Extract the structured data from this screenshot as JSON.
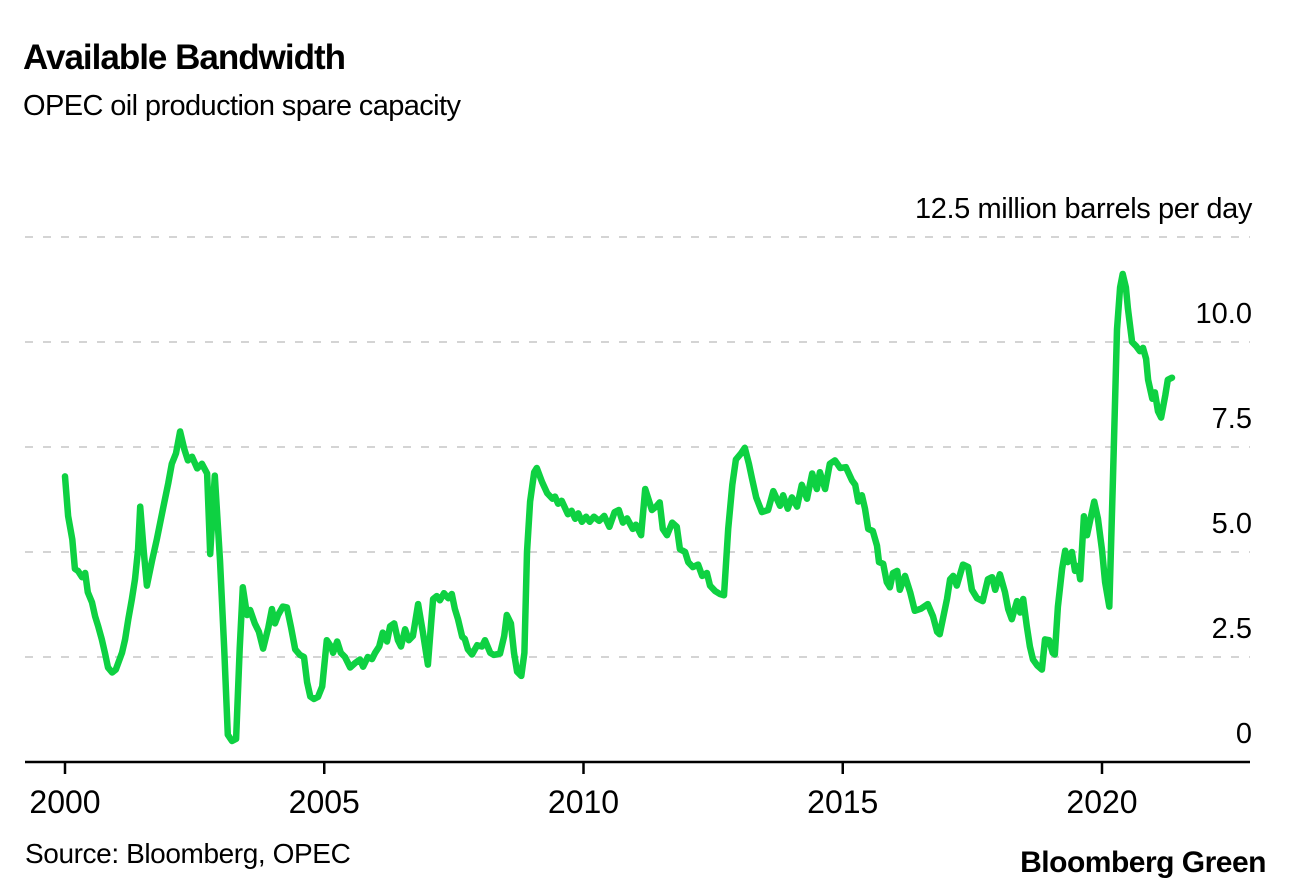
{
  "header": {
    "title": "Available Bandwidth",
    "subtitle": "OPEC oil production spare capacity"
  },
  "footer": {
    "source": "Source: Bloomberg, OPEC",
    "brand": "Bloomberg Green"
  },
  "colors": {
    "line": "#0ed142",
    "gridline": "#d4d4d4",
    "axis": "#000000",
    "background": "#ffffff",
    "text": "#000000"
  },
  "chart_data": {
    "type": "line",
    "title": "Available Bandwidth",
    "subtitle": "OPEC oil production spare capacity",
    "series_name": "OPEC oil production spare capacity",
    "unit_label": "12.5 million barrels per day",
    "xlabel": "Year",
    "ylabel": "million barrels per day",
    "xlim": [
      1999.23,
      2022.85
    ],
    "ylim": [
      0,
      12.5
    ],
    "grid": "dashed-horizontal",
    "legend_position": "none",
    "x_ticks": [
      2000,
      2005,
      2010,
      2015,
      2020
    ],
    "x_tick_labels": [
      "2000",
      "2005",
      "2010",
      "2015",
      "2020"
    ],
    "y_gridlines": [
      12.5,
      10.0,
      7.5,
      5.0,
      2.5,
      0
    ],
    "y_tick_labels": [
      "12.5 million barrels per day",
      "10.0",
      "7.5",
      "5.0",
      "2.5",
      "0"
    ],
    "points": [
      [
        2000.0,
        6.8
      ],
      [
        2000.06,
        5.86
      ],
      [
        2000.14,
        5.3
      ],
      [
        2000.19,
        4.6
      ],
      [
        2000.25,
        4.55
      ],
      [
        2000.33,
        4.4
      ],
      [
        2000.39,
        4.5
      ],
      [
        2000.44,
        4.04
      ],
      [
        2000.52,
        3.8
      ],
      [
        2000.58,
        3.47
      ],
      [
        2000.64,
        3.23
      ],
      [
        2000.71,
        2.92
      ],
      [
        2000.77,
        2.6
      ],
      [
        2000.83,
        2.25
      ],
      [
        2000.91,
        2.13
      ],
      [
        2000.98,
        2.2
      ],
      [
        2001.1,
        2.6
      ],
      [
        2001.16,
        2.92
      ],
      [
        2001.22,
        3.4
      ],
      [
        2001.29,
        3.88
      ],
      [
        2001.35,
        4.35
      ],
      [
        2001.41,
        5.07
      ],
      [
        2001.45,
        6.08
      ],
      [
        2001.52,
        5.0
      ],
      [
        2001.58,
        4.2
      ],
      [
        2001.68,
        4.8
      ],
      [
        2001.77,
        5.3
      ],
      [
        2001.89,
        6.03
      ],
      [
        2001.99,
        6.63
      ],
      [
        2002.06,
        7.1
      ],
      [
        2002.14,
        7.35
      ],
      [
        2002.22,
        7.87
      ],
      [
        2002.3,
        7.45
      ],
      [
        2002.37,
        7.18
      ],
      [
        2002.45,
        7.27
      ],
      [
        2002.55,
        6.99
      ],
      [
        2002.64,
        7.1
      ],
      [
        2002.74,
        6.87
      ],
      [
        2002.8,
        4.95
      ],
      [
        2002.89,
        6.82
      ],
      [
        2002.99,
        4.8
      ],
      [
        2003.07,
        2.7
      ],
      [
        2003.14,
        0.65
      ],
      [
        2003.22,
        0.5
      ],
      [
        2003.3,
        0.55
      ],
      [
        2003.37,
        2.7
      ],
      [
        2003.43,
        4.16
      ],
      [
        2003.51,
        3.5
      ],
      [
        2003.57,
        3.62
      ],
      [
        2003.66,
        3.3
      ],
      [
        2003.74,
        3.1
      ],
      [
        2003.82,
        2.7
      ],
      [
        2003.92,
        3.2
      ],
      [
        2003.99,
        3.64
      ],
      [
        2004.05,
        3.3
      ],
      [
        2004.11,
        3.5
      ],
      [
        2004.2,
        3.7
      ],
      [
        2004.28,
        3.68
      ],
      [
        2004.36,
        3.2
      ],
      [
        2004.44,
        2.68
      ],
      [
        2004.53,
        2.55
      ],
      [
        2004.61,
        2.5
      ],
      [
        2004.67,
        1.9
      ],
      [
        2004.73,
        1.56
      ],
      [
        2004.8,
        1.5
      ],
      [
        2004.88,
        1.55
      ],
      [
        2004.96,
        1.8
      ],
      [
        2005.05,
        2.9
      ],
      [
        2005.13,
        2.75
      ],
      [
        2005.17,
        2.6
      ],
      [
        2005.25,
        2.87
      ],
      [
        2005.32,
        2.6
      ],
      [
        2005.4,
        2.5
      ],
      [
        2005.5,
        2.25
      ],
      [
        2005.59,
        2.35
      ],
      [
        2005.69,
        2.44
      ],
      [
        2005.75,
        2.27
      ],
      [
        2005.84,
        2.5
      ],
      [
        2005.92,
        2.45
      ],
      [
        2005.98,
        2.6
      ],
      [
        2006.06,
        2.75
      ],
      [
        2006.13,
        3.08
      ],
      [
        2006.21,
        2.87
      ],
      [
        2006.27,
        3.23
      ],
      [
        2006.35,
        3.3
      ],
      [
        2006.42,
        2.9
      ],
      [
        2006.48,
        2.75
      ],
      [
        2006.56,
        3.16
      ],
      [
        2006.63,
        2.9
      ],
      [
        2006.71,
        3.0
      ],
      [
        2006.81,
        3.76
      ],
      [
        2006.9,
        3.1
      ],
      [
        2007.0,
        2.32
      ],
      [
        2007.06,
        3.3
      ],
      [
        2007.1,
        3.88
      ],
      [
        2007.17,
        3.95
      ],
      [
        2007.23,
        3.85
      ],
      [
        2007.31,
        4.02
      ],
      [
        2007.39,
        3.9
      ],
      [
        2007.46,
        4.0
      ],
      [
        2007.52,
        3.64
      ],
      [
        2007.58,
        3.4
      ],
      [
        2007.66,
        2.98
      ],
      [
        2007.71,
        2.93
      ],
      [
        2007.77,
        2.68
      ],
      [
        2007.85,
        2.56
      ],
      [
        2007.95,
        2.78
      ],
      [
        2008.04,
        2.75
      ],
      [
        2008.1,
        2.9
      ],
      [
        2008.2,
        2.6
      ],
      [
        2008.27,
        2.55
      ],
      [
        2008.39,
        2.58
      ],
      [
        2008.47,
        3.0
      ],
      [
        2008.52,
        3.5
      ],
      [
        2008.6,
        3.3
      ],
      [
        2008.66,
        2.6
      ],
      [
        2008.72,
        2.15
      ],
      [
        2008.8,
        2.05
      ],
      [
        2008.86,
        2.6
      ],
      [
        2008.91,
        5.0
      ],
      [
        2008.97,
        6.2
      ],
      [
        2009.05,
        6.9
      ],
      [
        2009.1,
        7.0
      ],
      [
        2009.2,
        6.67
      ],
      [
        2009.3,
        6.4
      ],
      [
        2009.4,
        6.27
      ],
      [
        2009.45,
        6.32
      ],
      [
        2009.51,
        6.15
      ],
      [
        2009.58,
        6.22
      ],
      [
        2009.65,
        6.03
      ],
      [
        2009.7,
        5.9
      ],
      [
        2009.77,
        5.98
      ],
      [
        2009.84,
        5.79
      ],
      [
        2009.9,
        5.92
      ],
      [
        2009.97,
        5.72
      ],
      [
        2010.05,
        5.84
      ],
      [
        2010.12,
        5.72
      ],
      [
        2010.2,
        5.84
      ],
      [
        2010.3,
        5.74
      ],
      [
        2010.4,
        5.86
      ],
      [
        2010.5,
        5.6
      ],
      [
        2010.6,
        5.95
      ],
      [
        2010.68,
        6.0
      ],
      [
        2010.76,
        5.7
      ],
      [
        2010.84,
        5.8
      ],
      [
        2010.95,
        5.55
      ],
      [
        2011.01,
        5.65
      ],
      [
        2011.11,
        5.4
      ],
      [
        2011.19,
        6.5
      ],
      [
        2011.32,
        6.0
      ],
      [
        2011.4,
        6.08
      ],
      [
        2011.47,
        6.18
      ],
      [
        2011.53,
        5.55
      ],
      [
        2011.61,
        5.4
      ],
      [
        2011.71,
        5.7
      ],
      [
        2011.8,
        5.6
      ],
      [
        2011.86,
        5.07
      ],
      [
        2011.96,
        5.0
      ],
      [
        2012.02,
        4.76
      ],
      [
        2012.11,
        4.64
      ],
      [
        2012.21,
        4.7
      ],
      [
        2012.29,
        4.43
      ],
      [
        2012.38,
        4.5
      ],
      [
        2012.44,
        4.2
      ],
      [
        2012.54,
        4.07
      ],
      [
        2012.63,
        4.0
      ],
      [
        2012.71,
        3.97
      ],
      [
        2012.79,
        5.55
      ],
      [
        2012.87,
        6.6
      ],
      [
        2012.94,
        7.2
      ],
      [
        2013.04,
        7.35
      ],
      [
        2013.11,
        7.48
      ],
      [
        2013.19,
        7.1
      ],
      [
        2013.25,
        6.75
      ],
      [
        2013.33,
        6.3
      ],
      [
        2013.44,
        5.95
      ],
      [
        2013.56,
        6.0
      ],
      [
        2013.66,
        6.45
      ],
      [
        2013.79,
        6.1
      ],
      [
        2013.85,
        6.35
      ],
      [
        2013.94,
        6.03
      ],
      [
        2014.02,
        6.3
      ],
      [
        2014.12,
        6.08
      ],
      [
        2014.21,
        6.6
      ],
      [
        2014.31,
        6.27
      ],
      [
        2014.41,
        6.87
      ],
      [
        2014.5,
        6.5
      ],
      [
        2014.56,
        6.9
      ],
      [
        2014.66,
        6.5
      ],
      [
        2014.75,
        7.1
      ],
      [
        2014.85,
        7.18
      ],
      [
        2014.95,
        7.0
      ],
      [
        2015.06,
        7.02
      ],
      [
        2015.18,
        6.7
      ],
      [
        2015.24,
        6.6
      ],
      [
        2015.3,
        6.2
      ],
      [
        2015.37,
        6.35
      ],
      [
        2015.43,
        6.03
      ],
      [
        2015.49,
        5.55
      ],
      [
        2015.58,
        5.5
      ],
      [
        2015.66,
        5.15
      ],
      [
        2015.7,
        4.76
      ],
      [
        2015.78,
        4.72
      ],
      [
        2015.85,
        4.28
      ],
      [
        2015.91,
        4.16
      ],
      [
        2015.97,
        4.5
      ],
      [
        2016.05,
        4.55
      ],
      [
        2016.1,
        4.1
      ],
      [
        2016.2,
        4.43
      ],
      [
        2016.3,
        4.04
      ],
      [
        2016.39,
        3.6
      ],
      [
        2016.51,
        3.65
      ],
      [
        2016.64,
        3.76
      ],
      [
        2016.74,
        3.47
      ],
      [
        2016.82,
        3.1
      ],
      [
        2016.87,
        3.04
      ],
      [
        2017.01,
        3.88
      ],
      [
        2017.07,
        4.35
      ],
      [
        2017.13,
        4.43
      ],
      [
        2017.2,
        4.2
      ],
      [
        2017.32,
        4.7
      ],
      [
        2017.42,
        4.64
      ],
      [
        2017.49,
        4.1
      ],
      [
        2017.59,
        3.9
      ],
      [
        2017.7,
        3.83
      ],
      [
        2017.8,
        4.35
      ],
      [
        2017.88,
        4.4
      ],
      [
        2017.94,
        4.1
      ],
      [
        2018.03,
        4.47
      ],
      [
        2018.13,
        4.04
      ],
      [
        2018.19,
        3.64
      ],
      [
        2018.26,
        3.4
      ],
      [
        2018.36,
        3.83
      ],
      [
        2018.42,
        3.56
      ],
      [
        2018.48,
        3.88
      ],
      [
        2018.55,
        3.23
      ],
      [
        2018.61,
        2.75
      ],
      [
        2018.67,
        2.44
      ],
      [
        2018.75,
        2.3
      ],
      [
        2018.84,
        2.2
      ],
      [
        2018.9,
        2.92
      ],
      [
        2018.98,
        2.9
      ],
      [
        2019.05,
        2.6
      ],
      [
        2019.09,
        2.56
      ],
      [
        2019.15,
        3.7
      ],
      [
        2019.23,
        4.6
      ],
      [
        2019.29,
        5.03
      ],
      [
        2019.34,
        4.76
      ],
      [
        2019.42,
        5.0
      ],
      [
        2019.48,
        4.55
      ],
      [
        2019.54,
        4.67
      ],
      [
        2019.58,
        4.35
      ],
      [
        2019.65,
        5.85
      ],
      [
        2019.71,
        5.4
      ],
      [
        2019.85,
        6.2
      ],
      [
        2019.92,
        5.8
      ],
      [
        2020.0,
        5.05
      ],
      [
        2020.06,
        4.28
      ],
      [
        2020.14,
        3.7
      ],
      [
        2020.21,
        6.7
      ],
      [
        2020.29,
        10.3
      ],
      [
        2020.35,
        11.3
      ],
      [
        2020.4,
        11.62
      ],
      [
        2020.46,
        11.3
      ],
      [
        2020.5,
        10.8
      ],
      [
        2020.58,
        10.0
      ],
      [
        2020.66,
        9.9
      ],
      [
        2020.73,
        9.78
      ],
      [
        2020.79,
        9.86
      ],
      [
        2020.85,
        9.6
      ],
      [
        2020.89,
        9.1
      ],
      [
        2020.97,
        8.65
      ],
      [
        2021.02,
        8.8
      ],
      [
        2021.08,
        8.35
      ],
      [
        2021.14,
        8.2
      ],
      [
        2021.22,
        8.73
      ],
      [
        2021.27,
        9.1
      ],
      [
        2021.35,
        9.15
      ]
    ]
  }
}
